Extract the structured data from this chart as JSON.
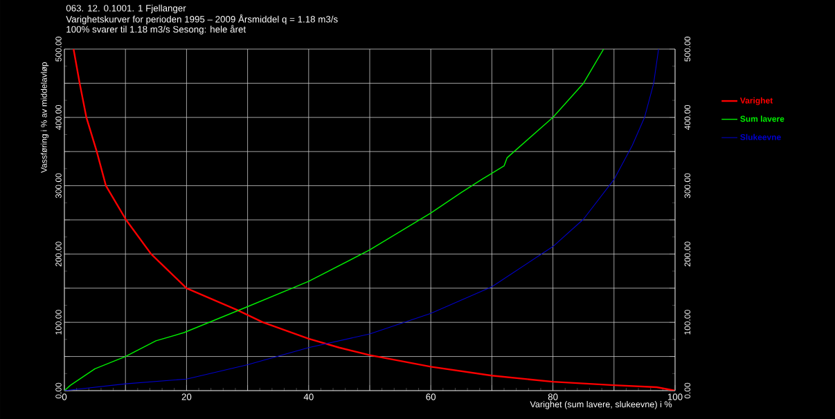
{
  "chart_data": {
    "type": "line",
    "title": "063.   12. 0.1001. 1   Fjellanger",
    "subtitle": "Varighetskurver for  perioden 1995 – 2009 Årsmiddel q =       1.18 m3/s",
    "annotations": [
      "100% svarer til       1.18 m3/s        Sesong: hele året"
    ],
    "xlabel": "Varighet (sum lavere, slukeevne) i %",
    "ylabel": "Vassføring i % av middelavløp",
    "series": [
      {
        "name": "Varighet",
        "color": "#ff0000",
        "x": [
          1.5,
          2.5,
          3.6,
          5.3,
          6.8,
          10.1,
          14.2,
          20,
          28.3,
          32.5,
          40,
          45,
          50,
          60,
          70,
          80,
          90,
          97,
          100
        ],
        "values": [
          500,
          450,
          400,
          350,
          300,
          250,
          200,
          150,
          118,
          100,
          76,
          63,
          52,
          35,
          22,
          13,
          8,
          5,
          0
        ]
      },
      {
        "name": "Sum lavere",
        "color": "#00ee00",
        "x": [
          0,
          1,
          5,
          10,
          15,
          19.6,
          30,
          40,
          50,
          60,
          65,
          68.5,
          72,
          72.5,
          80,
          85,
          88.3
        ],
        "values": [
          0,
          8,
          32,
          50,
          73,
          85,
          123,
          160,
          206,
          260,
          290,
          310,
          329,
          341,
          400,
          450,
          500
        ]
      },
      {
        "name": "Slukeevne",
        "color": "#0000cc",
        "x": [
          0,
          10,
          20,
          30,
          40,
          50,
          60,
          70,
          80,
          85,
          90,
          93,
          95,
          96.5,
          97.3
        ],
        "values": [
          0,
          10,
          17,
          38,
          63,
          83,
          113,
          152,
          211,
          251,
          309,
          359,
          400,
          450,
          500
        ]
      }
    ],
    "xlim": [
      0,
      100
    ],
    "xticks": [
      0,
      {
        "value": 10,
        "label": null
      },
      20,
      {
        "value": 30,
        "label": null
      },
      40,
      {
        "value": 50,
        "label": null
      },
      60,
      {
        "value": 70,
        "label": null
      },
      80,
      {
        "value": 90,
        "label": null
      },
      100
    ],
    "ylim": [
      0,
      500
    ],
    "yticks": [
      {
        "value": 0,
        "label": "0.00"
      },
      {
        "value": 50,
        "label": null
      },
      {
        "value": 100,
        "label": "100.00"
      },
      {
        "value": 150,
        "label": null
      },
      {
        "value": 200,
        "label": "200.00"
      },
      {
        "value": 250,
        "label": null
      },
      {
        "value": 300,
        "label": "300.00"
      },
      {
        "value": 350,
        "label": null
      },
      {
        "value": 400,
        "label": "400.00"
      },
      {
        "value": 450,
        "label": null
      },
      {
        "value": 500,
        "label": "500.00"
      }
    ],
    "y2lim": [
      0,
      500
    ],
    "y2ticks": [
      {
        "value": 0,
        "label": "0.00"
      },
      {
        "value": 50,
        "label": null
      },
      {
        "value": 100,
        "label": "100.00"
      },
      {
        "value": 150,
        "label": null
      },
      {
        "value": 200,
        "label": "200.00"
      },
      {
        "value": 250,
        "label": null
      },
      {
        "value": 300,
        "label": "300.00"
      },
      {
        "value": 350,
        "label": null
      },
      {
        "value": 400,
        "label": "400.00"
      },
      {
        "value": 450,
        "label": null
      },
      {
        "value": 500,
        "label": "500.00"
      }
    ],
    "grid": true,
    "legend": "right",
    "line_style": "solid"
  }
}
